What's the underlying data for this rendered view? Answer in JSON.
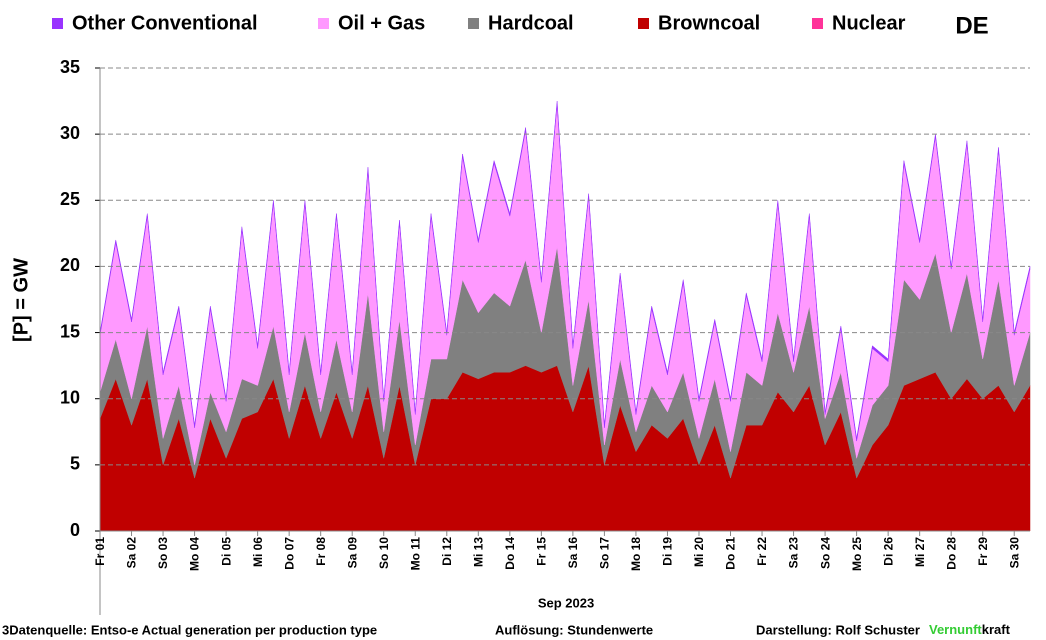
{
  "chart_data": {
    "type": "stacked_area",
    "title": "DE",
    "y_label": "[P] =  GW",
    "x_label": "Sep 2023",
    "footer": {
      "source": "3Datenquelle: Entso-e  Actual generation per production type",
      "resolution": "Auflösung: Stundenwerte",
      "author": "Darstellung:  Rolf Schuster",
      "brand_green": "Vernunft",
      "brand_black": "kraft"
    },
    "ylim": [
      0,
      35
    ],
    "yticks": [
      0,
      5,
      10,
      15,
      20,
      25,
      30,
      35
    ],
    "grid": true,
    "categories": [
      "Fr 01",
      null,
      "Sa 02",
      null,
      "So 03",
      null,
      "Mo 04",
      null,
      "Di 05",
      null,
      "Mi 06",
      null,
      "Do 07",
      null,
      "Fr 08",
      null,
      "Sa 09",
      null,
      "So 10",
      null,
      "Mo 11",
      null,
      "Di 12",
      null,
      "Mi 13",
      null,
      "Do 14",
      null,
      "Fr 15",
      null,
      "Sa 16",
      null,
      "So 17",
      null,
      "Mo 18",
      null,
      "Di 19",
      null,
      "Mi 20",
      null,
      "Do 21",
      null,
      "Fr 22",
      null,
      "Sa 23",
      null,
      "So 24",
      null,
      "Mo 25",
      null,
      "Di 26",
      null,
      "Mi 27",
      null,
      "Do 28",
      null,
      "Fr 29",
      null,
      "Sa 30",
      null
    ],
    "series": [
      {
        "name": "Other Conventional",
        "color": "#9933ff",
        "values": [
          0.2,
          0.2,
          0.2,
          0.2,
          0.2,
          0.2,
          0.2,
          0.2,
          0.2,
          0.2,
          0.2,
          0.2,
          0.2,
          0.2,
          0.2,
          0.2,
          0.2,
          0.2,
          0.2,
          0.2,
          0.2,
          0.2,
          0.2,
          0.2,
          0.2,
          0.2,
          0.2,
          0.2,
          0.2,
          0.2,
          0.2,
          0.2,
          0.2,
          0.2,
          0.2,
          0.2,
          0.2,
          0.2,
          0.2,
          0.2,
          0.2,
          0.2,
          0.2,
          0.2,
          0.2,
          0.2,
          0.2,
          0.2,
          0.2,
          0.2,
          0.2,
          0.2,
          0.2,
          0.2,
          0.2,
          0.2,
          0.2,
          0.2,
          0.2,
          0.2
        ]
      },
      {
        "name": "Oil + Gas",
        "color": "#ff99ff",
        "values": [
          4.3,
          7.3,
          5.8,
          8.3,
          4.8,
          5.8,
          2.8,
          6.3,
          2.3,
          11.3,
          2.8,
          9.3,
          2.8,
          9.8,
          2.8,
          9.3,
          2.8,
          9.3,
          2.3,
          7.3,
          2.3,
          10.8,
          1.8,
          9.3,
          5.3,
          9.8,
          6.8,
          9.8,
          3.8,
          10.8,
          2.8,
          7.8,
          1.3,
          6.3,
          1.3,
          5.8,
          2.8,
          6.8,
          2.8,
          4.3,
          3.8,
          5.8,
          1.8,
          8.3,
          0.8,
          6.8,
          0.3,
          3.3,
          1.3,
          4.3,
          1.8,
          8.8,
          4.3,
          8.8,
          4.8,
          9.8,
          2.8,
          9.8,
          3.8,
          4.8
        ]
      },
      {
        "name": "Hardcoal",
        "color": "#808080",
        "values": [
          2,
          3,
          2,
          4,
          2,
          2.5,
          1,
          2,
          2,
          3,
          2,
          4,
          2,
          4,
          2,
          4,
          2,
          7,
          2,
          5,
          1.5,
          3,
          3,
          7,
          5,
          6,
          5,
          8,
          3,
          9,
          2,
          5,
          1.5,
          3.5,
          1.5,
          3,
          2,
          3.5,
          2,
          3.5,
          2,
          4,
          3,
          6,
          3,
          6,
          2,
          3,
          1.5,
          3,
          3,
          8,
          6,
          9,
          5,
          8,
          3,
          8,
          2,
          4
        ]
      },
      {
        "name": "Browncoal",
        "color": "#c00000",
        "values": [
          8.5,
          11.5,
          8,
          11.5,
          5,
          8.5,
          4,
          8.5,
          5.5,
          8.5,
          9,
          11.5,
          7,
          11,
          7,
          10.5,
          7,
          11,
          5.5,
          11,
          5,
          10,
          10,
          12,
          11.5,
          12,
          12,
          12.5,
          12,
          12.5,
          9,
          12.5,
          5,
          9.5,
          6,
          8,
          7,
          8.5,
          5,
          8,
          4,
          8,
          8,
          10.5,
          9,
          11,
          6.5,
          9,
          4,
          6.5,
          8,
          11,
          11.5,
          12,
          10,
          11.5,
          10,
          11,
          9,
          11
        ]
      },
      {
        "name": "Nuclear",
        "color": "#ff3399",
        "values": [
          0,
          0,
          0,
          0,
          0,
          0,
          0,
          0,
          0,
          0,
          0,
          0,
          0,
          0,
          0,
          0,
          0,
          0,
          0,
          0,
          0,
          0,
          0,
          0,
          0,
          0,
          0,
          0,
          0,
          0,
          0,
          0,
          0,
          0,
          0,
          0,
          0,
          0,
          0,
          0,
          0,
          0,
          0,
          0,
          0,
          0,
          0,
          0,
          0,
          0,
          0,
          0,
          0,
          0,
          0,
          0,
          0,
          0,
          0,
          0
        ]
      }
    ]
  }
}
